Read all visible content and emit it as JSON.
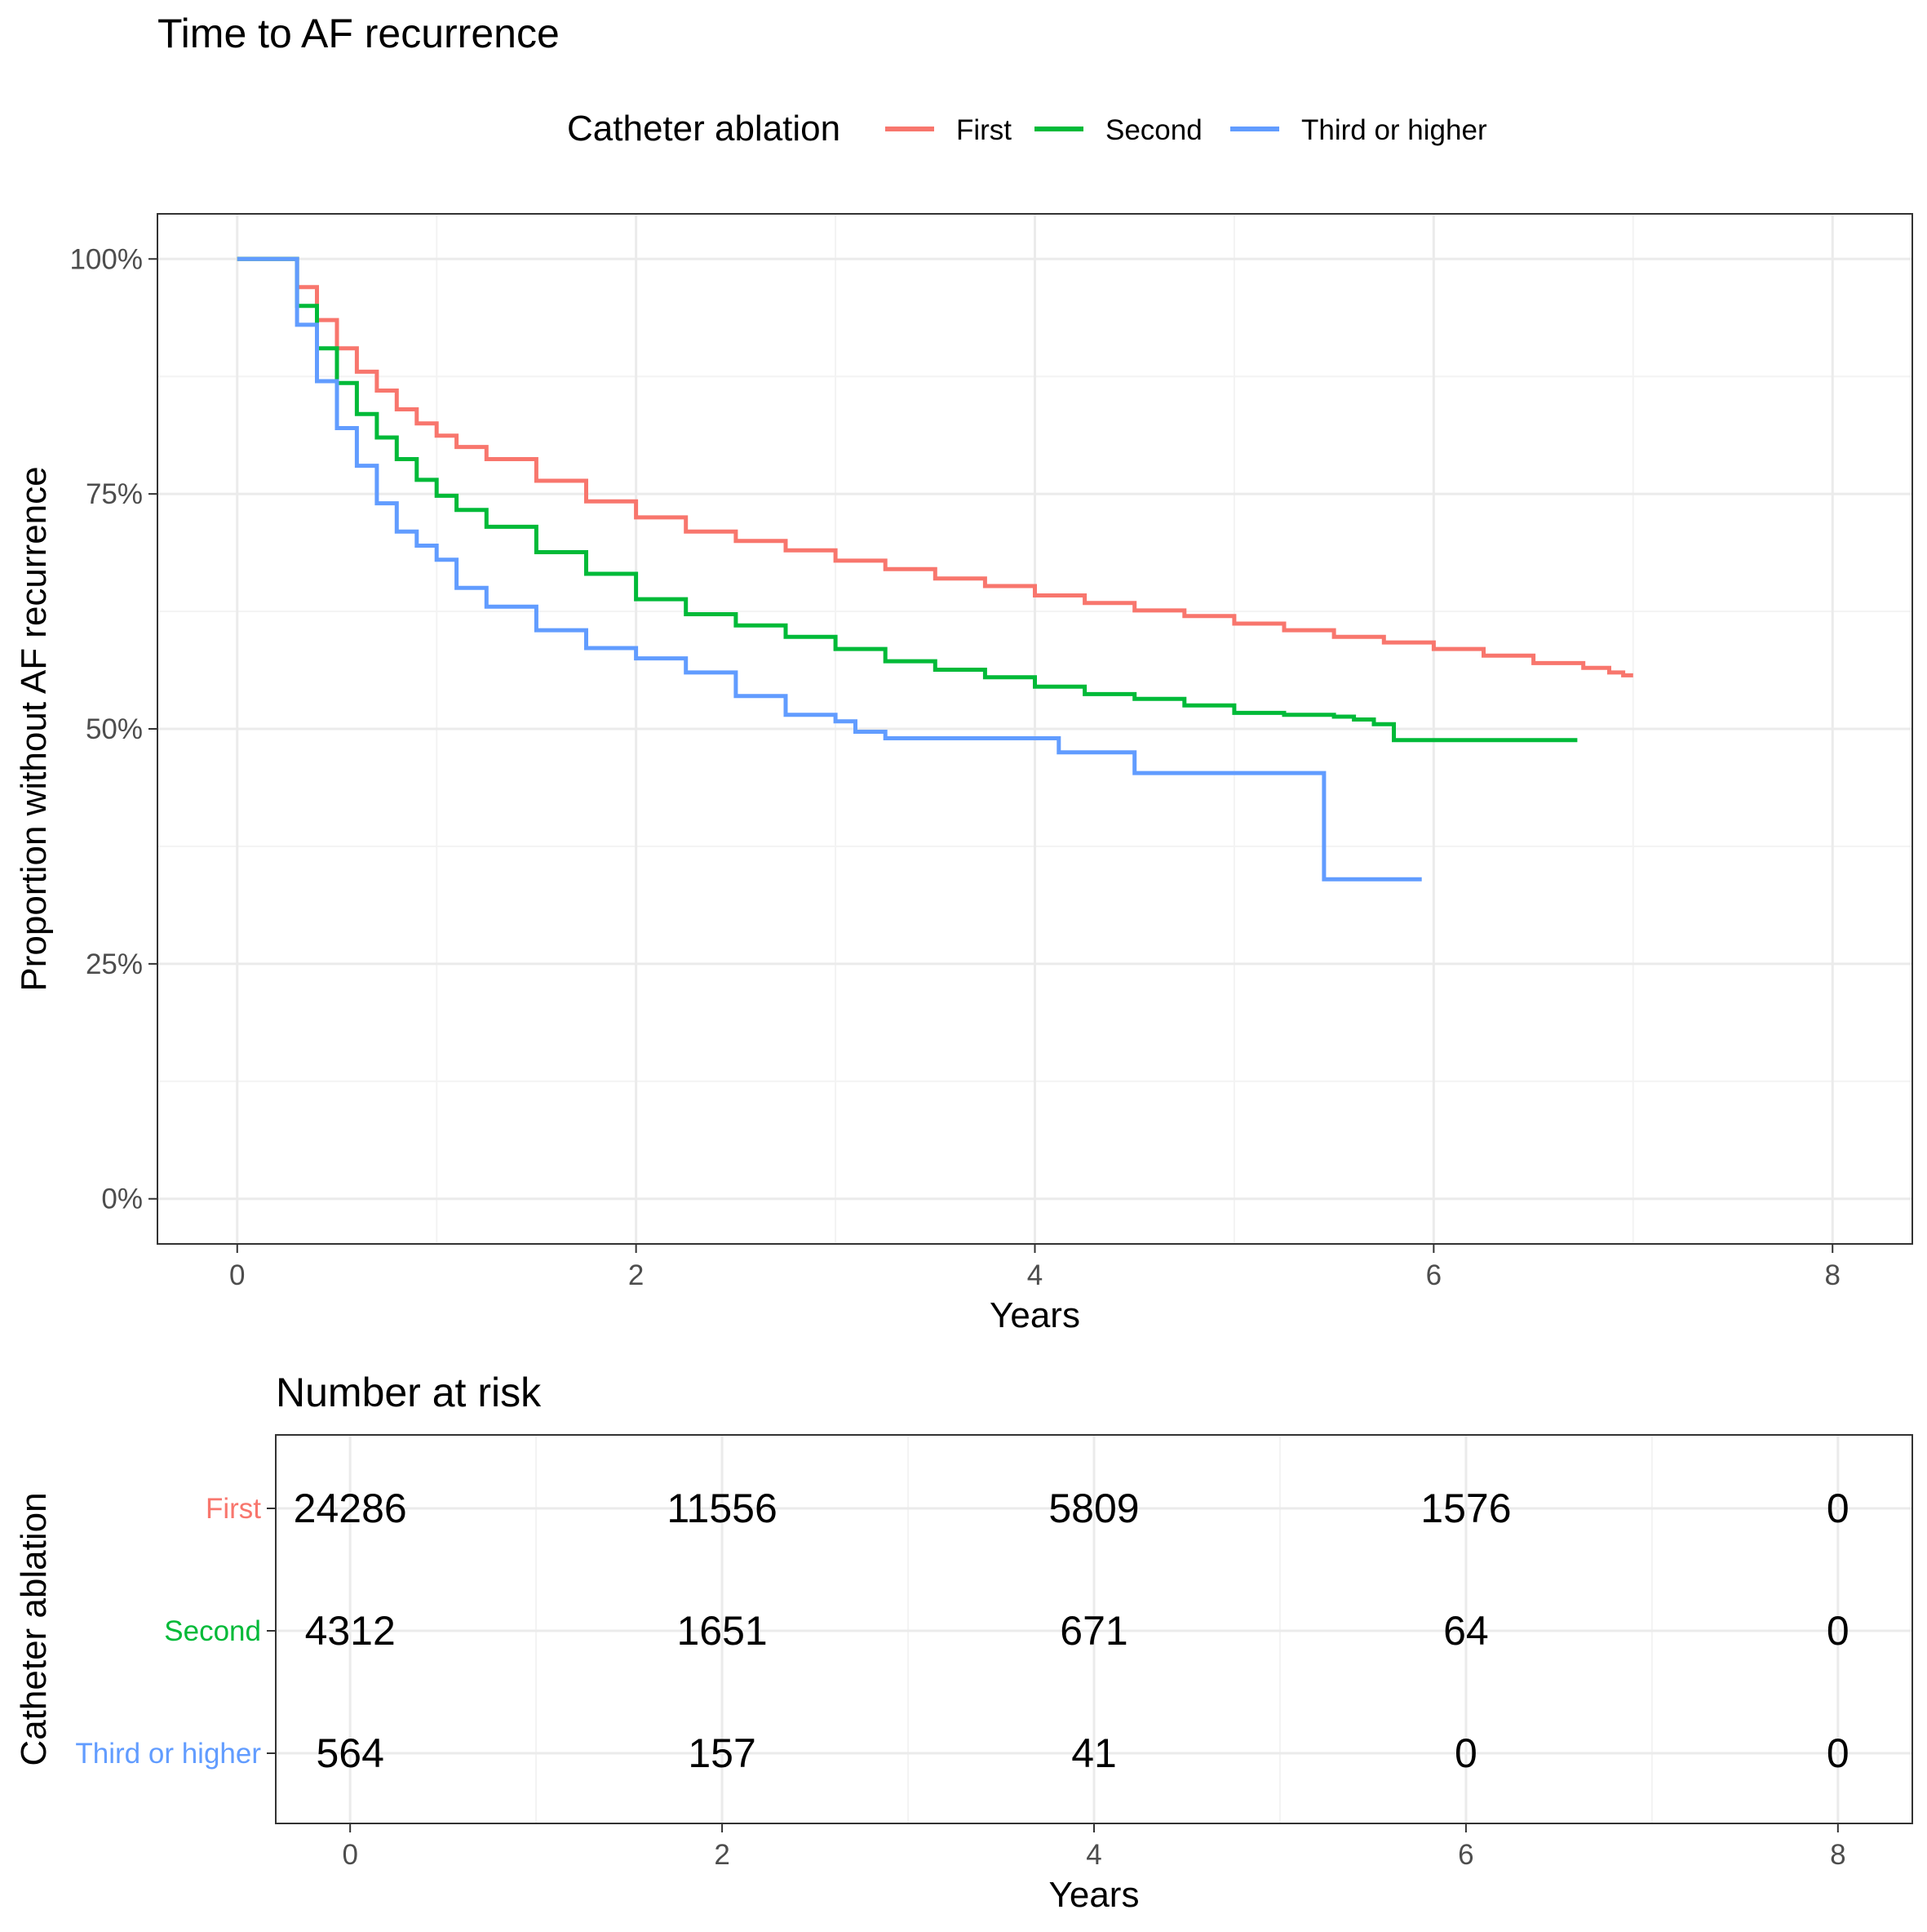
{
  "colors": {
    "First": "#F8766D",
    "Second": "#00BA38",
    "Third or higher": "#619CFF",
    "grid_major": "#EBEBEB",
    "grid_minor": "#F3F3F3",
    "panel_border": "#333333",
    "axis_text": "#4D4D4D",
    "text": "#000000"
  },
  "chart_data": [
    {
      "type": "line",
      "step": true,
      "title": "Time to AF recurrence",
      "xlabel": "Years",
      "ylabel": "Proportion without AF recurrence",
      "xlim": [
        -0.4,
        8.4
      ],
      "ylim": [
        -0.048,
        1.048
      ],
      "x_ticks": [
        0,
        2,
        4,
        6,
        8
      ],
      "y_ticks": [
        0,
        0.25,
        0.5,
        0.75,
        1.0
      ],
      "y_tick_labels": [
        "0%",
        "25%",
        "50%",
        "75%",
        "100%"
      ],
      "grid": true,
      "legend": {
        "title": "Catheter ablation",
        "position": "top",
        "entries": [
          "First",
          "Second",
          "Third or higher"
        ]
      },
      "series": [
        {
          "name": "First",
          "color": "#F8766D",
          "points": [
            [
              0,
              1.0
            ],
            [
              0.25,
              1.0
            ],
            [
              0.3,
              0.97
            ],
            [
              0.4,
              0.935
            ],
            [
              0.5,
              0.905
            ],
            [
              0.6,
              0.88
            ],
            [
              0.7,
              0.86
            ],
            [
              0.8,
              0.84
            ],
            [
              0.9,
              0.825
            ],
            [
              1.0,
              0.812
            ],
            [
              1.1,
              0.8
            ],
            [
              1.25,
              0.787
            ],
            [
              1.5,
              0.764
            ],
            [
              1.75,
              0.742
            ],
            [
              2.0,
              0.725
            ],
            [
              2.25,
              0.71
            ],
            [
              2.5,
              0.7
            ],
            [
              2.75,
              0.69
            ],
            [
              3.0,
              0.679
            ],
            [
              3.25,
              0.67
            ],
            [
              3.5,
              0.66
            ],
            [
              3.75,
              0.652
            ],
            [
              4.0,
              0.642
            ],
            [
              4.25,
              0.634
            ],
            [
              4.5,
              0.626
            ],
            [
              4.75,
              0.62
            ],
            [
              5.0,
              0.612
            ],
            [
              5.25,
              0.605
            ],
            [
              5.5,
              0.598
            ],
            [
              5.75,
              0.592
            ],
            [
              6.0,
              0.585
            ],
            [
              6.25,
              0.578
            ],
            [
              6.5,
              0.57
            ],
            [
              6.75,
              0.565
            ],
            [
              6.88,
              0.56
            ],
            [
              6.95,
              0.557
            ],
            [
              7.0,
              0.557
            ]
          ]
        },
        {
          "name": "Second",
          "color": "#00BA38",
          "points": [
            [
              0,
              1.0
            ],
            [
              0.25,
              1.0
            ],
            [
              0.3,
              0.95
            ],
            [
              0.4,
              0.905
            ],
            [
              0.5,
              0.868
            ],
            [
              0.6,
              0.835
            ],
            [
              0.7,
              0.81
            ],
            [
              0.8,
              0.787
            ],
            [
              0.9,
              0.765
            ],
            [
              1.0,
              0.748
            ],
            [
              1.1,
              0.733
            ],
            [
              1.25,
              0.715
            ],
            [
              1.5,
              0.688
            ],
            [
              1.75,
              0.665
            ],
            [
              2.0,
              0.638
            ],
            [
              2.25,
              0.622
            ],
            [
              2.5,
              0.61
            ],
            [
              2.75,
              0.598
            ],
            [
              3.0,
              0.585
            ],
            [
              3.25,
              0.572
            ],
            [
              3.5,
              0.563
            ],
            [
              3.75,
              0.555
            ],
            [
              4.0,
              0.545
            ],
            [
              4.25,
              0.537
            ],
            [
              4.5,
              0.532
            ],
            [
              4.75,
              0.525
            ],
            [
              5.0,
              0.517
            ],
            [
              5.25,
              0.515
            ],
            [
              5.5,
              0.513
            ],
            [
              5.6,
              0.51
            ],
            [
              5.7,
              0.505
            ],
            [
              5.8,
              0.488
            ],
            [
              6.0,
              0.488
            ],
            [
              6.5,
              0.488
            ],
            [
              6.72,
              0.488
            ]
          ]
        },
        {
          "name": "Third or higher",
          "color": "#619CFF",
          "points": [
            [
              0,
              1.0
            ],
            [
              0.25,
              1.0
            ],
            [
              0.3,
              0.93
            ],
            [
              0.4,
              0.87
            ],
            [
              0.5,
              0.82
            ],
            [
              0.6,
              0.78
            ],
            [
              0.7,
              0.74
            ],
            [
              0.8,
              0.71
            ],
            [
              0.9,
              0.695
            ],
            [
              1.0,
              0.68
            ],
            [
              1.1,
              0.65
            ],
            [
              1.25,
              0.63
            ],
            [
              1.5,
              0.605
            ],
            [
              1.75,
              0.586
            ],
            [
              2.0,
              0.575
            ],
            [
              2.25,
              0.56
            ],
            [
              2.5,
              0.535
            ],
            [
              2.75,
              0.515
            ],
            [
              3.0,
              0.508
            ],
            [
              3.1,
              0.497
            ],
            [
              3.25,
              0.49
            ],
            [
              3.5,
              0.49
            ],
            [
              4.0,
              0.49
            ],
            [
              4.12,
              0.475
            ],
            [
              4.5,
              0.453
            ],
            [
              5.0,
              0.453
            ],
            [
              5.45,
              0.453
            ],
            [
              5.45,
              0.34
            ],
            [
              5.94,
              0.34
            ]
          ]
        }
      ]
    },
    {
      "type": "table",
      "title": "Number at risk",
      "xlabel": "Years",
      "ylabel": "Catheter ablation",
      "xlim": [
        -0.4,
        8.4
      ],
      "x_ticks": [
        0,
        2,
        4,
        6,
        8
      ],
      "rows": [
        {
          "name": "First",
          "color": "#F8766D",
          "values": [
            "24286",
            "11556",
            "5809",
            "1576",
            "0"
          ]
        },
        {
          "name": "Second",
          "color": "#00BA38",
          "values": [
            "4312",
            "1651",
            "671",
            "64",
            "0"
          ]
        },
        {
          "name": "Third or higher",
          "color": "#619CFF",
          "values": [
            "564",
            "157",
            "41",
            "0",
            "0"
          ]
        }
      ]
    }
  ]
}
